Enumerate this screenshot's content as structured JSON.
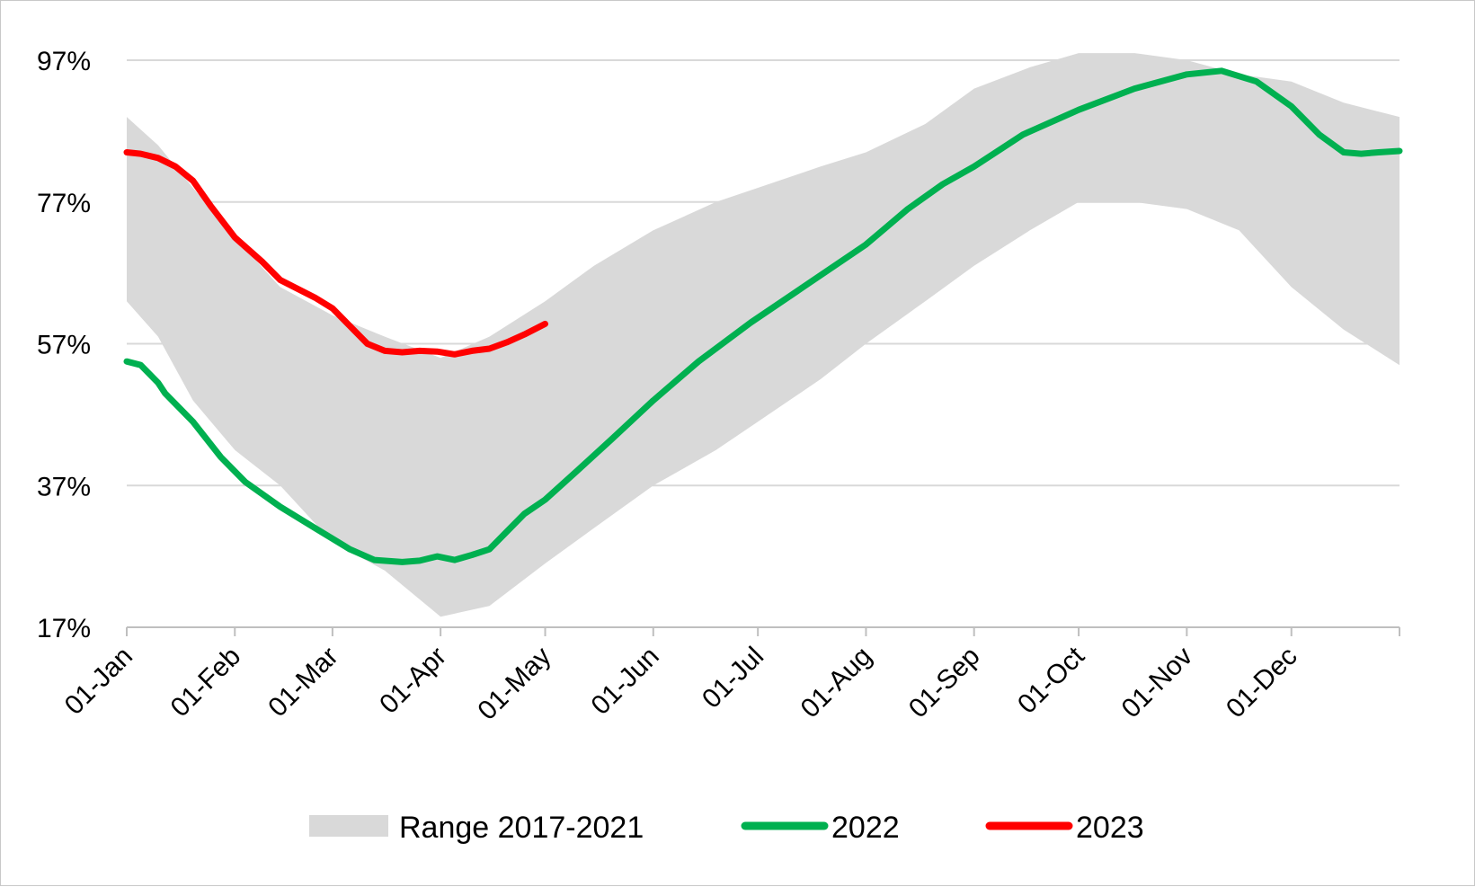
{
  "chart_data": {
    "type": "area",
    "title": "",
    "xlabel": "",
    "ylabel": "",
    "ylim": [
      17,
      97
    ],
    "y_ticks": [
      "97%",
      "77%",
      "57%",
      "37%",
      "17%"
    ],
    "y_tick_values": [
      97,
      77,
      57,
      37,
      17
    ],
    "x_ticks": [
      "01-Jan",
      "01-Feb",
      "01-Mar",
      "01-Apr",
      "01-May",
      "01-Jun",
      "01-Jul",
      "01-Aug",
      "01-Sep",
      "01-Oct",
      "01-Nov",
      "01-Dec"
    ],
    "x_tick_days": [
      1,
      32,
      60,
      91,
      121,
      152,
      182,
      213,
      244,
      274,
      305,
      335
    ],
    "x_range_days": [
      1,
      366
    ],
    "grid": "horizontal",
    "legend_position": "bottom",
    "colors": {
      "range": "#d9d9d9",
      "2022": "#00b050",
      "2023": "#ff0000",
      "grid": "#d9d9d9",
      "axis": "#bfbfbf"
    },
    "range_band": {
      "name": "Range 2017-2021",
      "x": [
        1,
        10,
        20,
        32,
        45,
        60,
        75,
        91,
        105,
        121,
        135,
        152,
        170,
        182,
        200,
        213,
        230,
        244,
        260,
        274,
        290,
        305,
        320,
        335,
        350,
        366
      ],
      "low": [
        63,
        58,
        49,
        42,
        37,
        29,
        25,
        18.5,
        20,
        26,
        31,
        37,
        42,
        46,
        52,
        57,
        63,
        68,
        73,
        77,
        77,
        76,
        73,
        65,
        59,
        54
      ],
      "high": [
        89,
        85,
        79,
        72,
        65,
        61,
        58,
        55,
        58,
        63,
        68,
        73,
        77,
        79,
        82,
        84,
        88,
        93,
        96,
        98,
        98,
        97,
        95,
        94,
        91,
        89
      ]
    },
    "series": [
      {
        "name": "2022",
        "x": [
          1,
          5,
          10,
          12,
          20,
          28,
          35,
          45,
          55,
          65,
          72,
          80,
          85,
          90,
          95,
          100,
          105,
          110,
          115,
          121,
          130,
          140,
          152,
          165,
          180,
          195,
          213,
          225,
          235,
          244,
          258,
          274,
          290,
          305,
          315,
          325,
          335,
          343,
          350,
          355,
          360,
          366
        ],
        "values": [
          54.5,
          54,
          51.5,
          50,
          46,
          41,
          37.5,
          34,
          31,
          28,
          26.5,
          26.2,
          26.4,
          27,
          26.5,
          27.2,
          28,
          30.5,
          33,
          35,
          39,
          43.5,
          49,
          54.5,
          60,
          65,
          71,
          76,
          79.5,
          82,
          86.5,
          90,
          93,
          95,
          95.5,
          94,
          90.5,
          86.5,
          84,
          83.8,
          84,
          84.2
        ]
      },
      {
        "name": "2023",
        "x": [
          1,
          5,
          10,
          15,
          20,
          25,
          32,
          40,
          45,
          55,
          60,
          65,
          70,
          75,
          80,
          85,
          90,
          95,
          100,
          105,
          110,
          115,
          121
        ],
        "values": [
          84,
          83.8,
          83.2,
          82,
          80,
          76.5,
          72,
          68.5,
          66,
          63.5,
          62,
          59.5,
          57,
          56,
          55.8,
          56,
          55.9,
          55.5,
          56,
          56.3,
          57.2,
          58.3,
          59.8
        ]
      }
    ]
  },
  "legend": {
    "range_label": "Range 2017-2021",
    "s2022_label": "2022",
    "s2023_label": "2023"
  }
}
